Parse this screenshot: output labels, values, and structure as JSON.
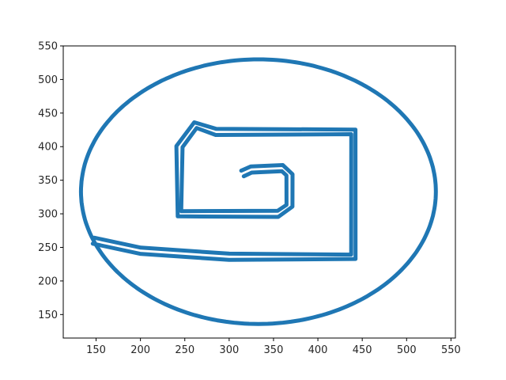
{
  "chart_data": {
    "type": "scatter",
    "title": "",
    "xlabel": "",
    "ylabel": "",
    "xlim": [
      113.0,
      555.0
    ],
    "ylim": [
      115.0,
      550.0
    ],
    "x_ticks": [
      150,
      200,
      250,
      300,
      350,
      400,
      450,
      500,
      550
    ],
    "y_ticks": [
      150,
      200,
      250,
      300,
      350,
      400,
      450,
      500,
      550
    ],
    "grid": false,
    "legend": "none",
    "marker_color": "#1f77b4",
    "series": [
      {
        "shape": "ellipse-outline",
        "center": [
          333,
          333
        ],
        "radius_x": 200,
        "radius_y": 197
      },
      {
        "shape": "spiral-double-stroke",
        "path": [
          [
            147,
            260
          ],
          [
            200,
            245
          ],
          [
            300,
            236
          ],
          [
            440,
            236
          ],
          [
            440,
            422
          ],
          [
            285,
            422
          ],
          [
            262,
            432
          ],
          [
            244,
            400
          ],
          [
            244,
            300
          ],
          [
            355,
            300
          ],
          [
            368,
            312
          ],
          [
            368,
            358
          ],
          [
            360,
            368
          ],
          [
            325,
            366
          ],
          [
            315,
            360
          ]
        ],
        "offset": 7
      }
    ]
  }
}
